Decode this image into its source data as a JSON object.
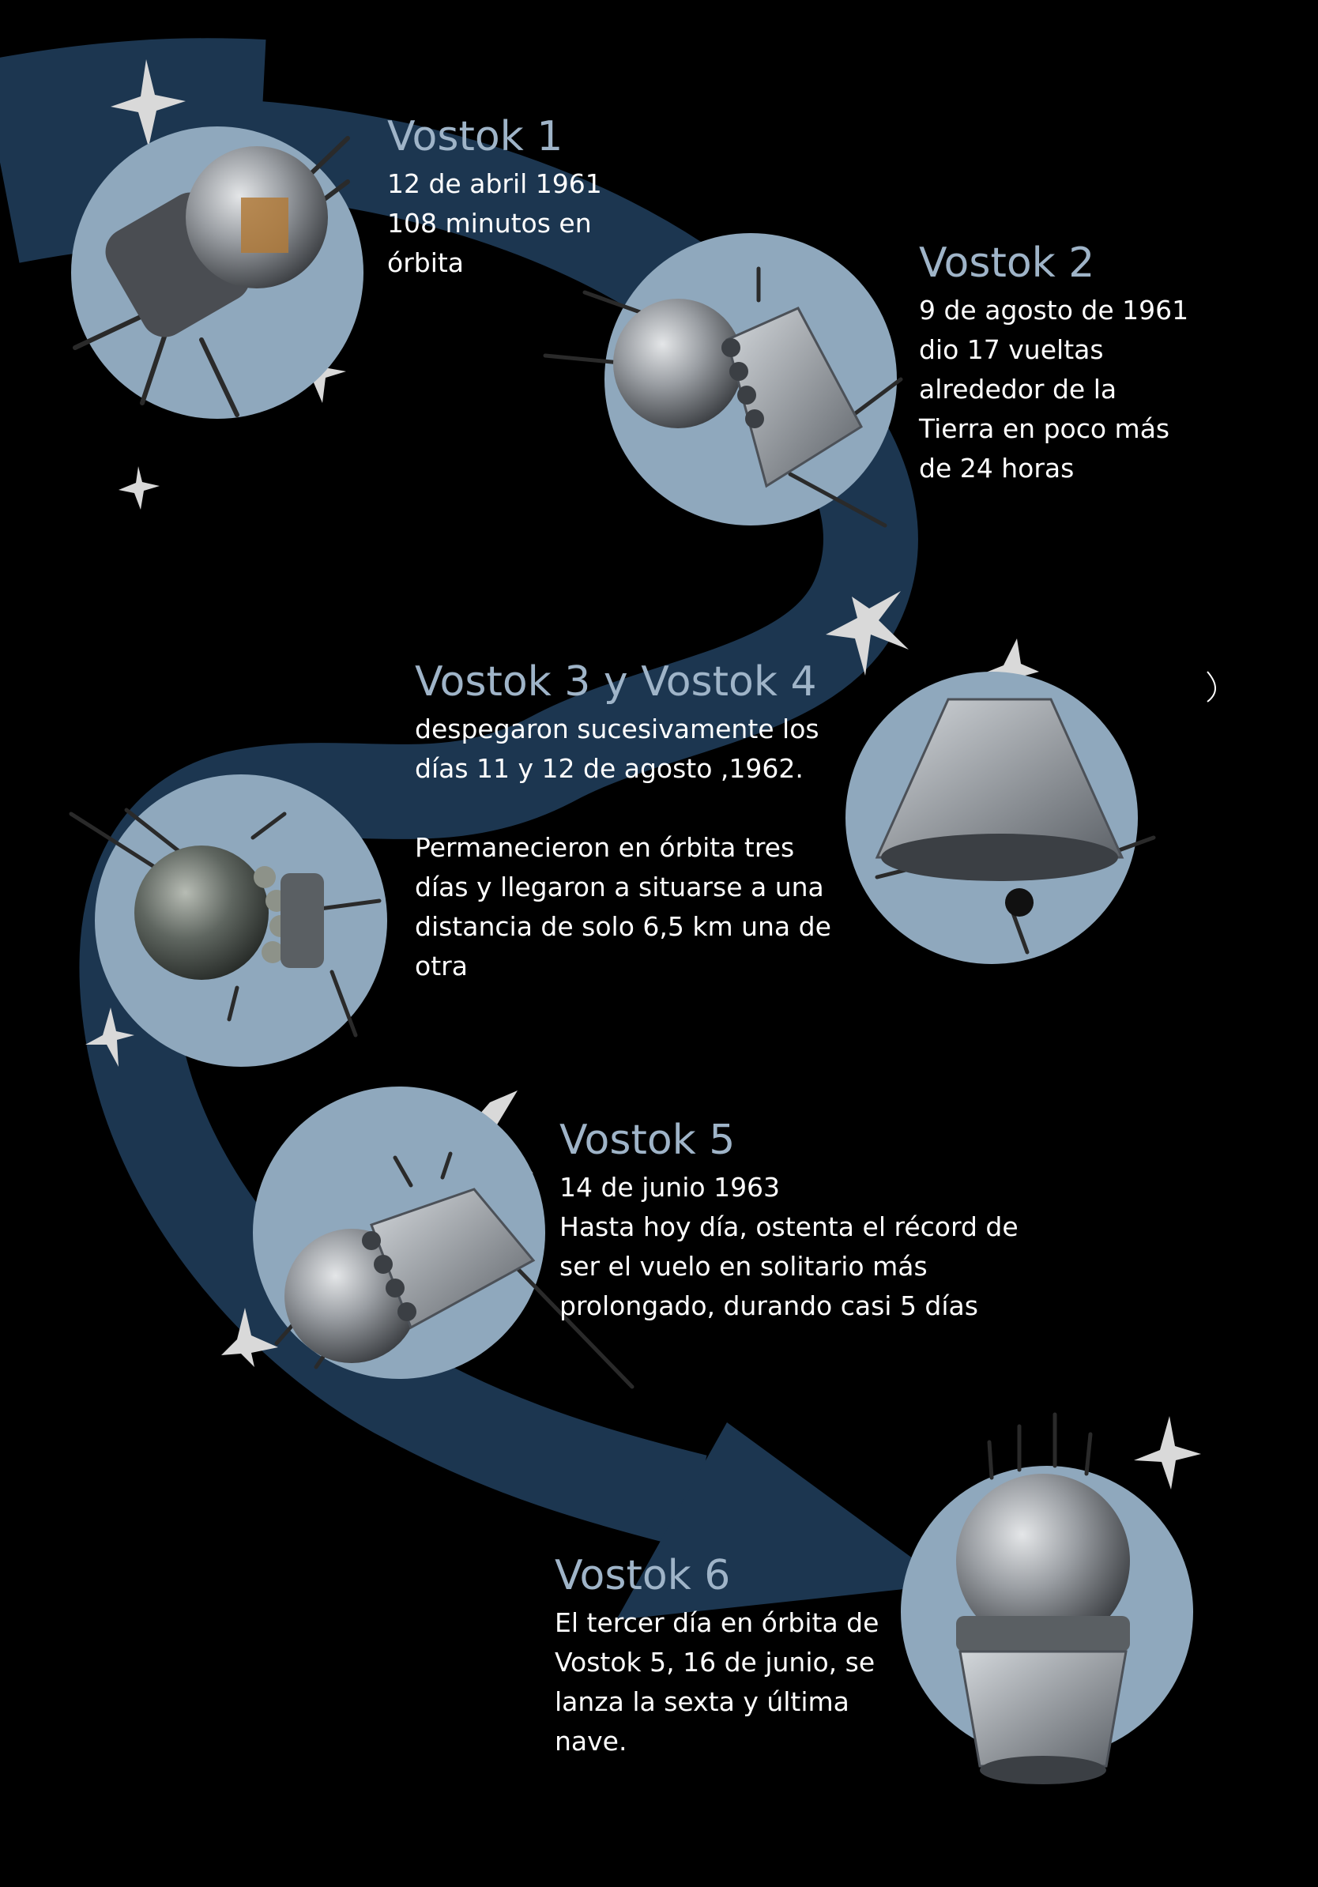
{
  "colors": {
    "background": "#000000",
    "path": "#1c3650",
    "circle": "#8fa8bd",
    "star": "#d9d9d9",
    "title": "#9fb4c8",
    "text": "#ffffff"
  },
  "missions": [
    {
      "title": "Vostok 1",
      "lines": [
        "12 de abril 1961",
        "108 minutos en",
        "órbita"
      ]
    },
    {
      "title": "Vostok 2",
      "lines": [
        "9 de agosto de 1961",
        "dio 17 vueltas",
        "alrededor de la",
        "Tierra en poco más",
        "de 24 horas"
      ]
    },
    {
      "title": "Vostok 3 y Vostok 4",
      "lines": [
        "despegaron sucesivamente los",
        "días  11 y 12 de agosto ,1962."
      ],
      "lines2": [
        "Permanecieron en órbita tres",
        "días y llegaron a situarse a una",
        "distancia de solo 6,5 km una de",
        "otra"
      ]
    },
    {
      "title": "Vostok 5",
      "lines": [
        "14 de junio 1963",
        "Hasta hoy día, ostenta el récord de",
        "ser el vuelo en solitario más",
        "prolongado, durando casi 5 días"
      ]
    },
    {
      "title": "Vostok 6",
      "lines": [
        "El tercer día en órbita de",
        "Vostok 5, 16 de junio, se",
        "lanza la sexta y última",
        "nave."
      ]
    }
  ]
}
